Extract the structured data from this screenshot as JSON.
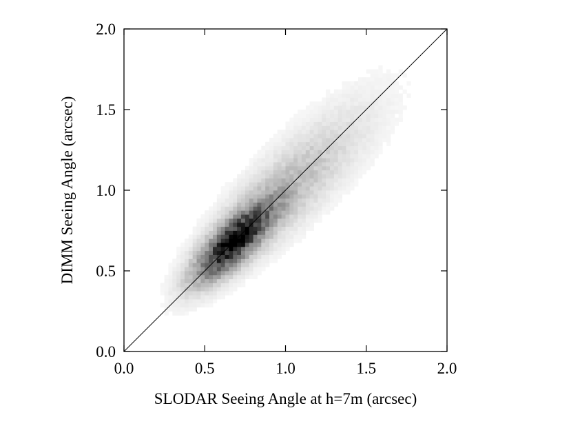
{
  "chart_data": {
    "type": "heatmap",
    "title": "",
    "xlabel": "SLODAR Seeing Angle at h=7m (arcsec)",
    "ylabel": "DIMM Seeing Angle (arcsec)",
    "xlim": [
      0.0,
      2.0
    ],
    "ylim": [
      0.0,
      2.0
    ],
    "xticks": [
      "0.0",
      "0.5",
      "1.0",
      "1.5",
      "2.0"
    ],
    "yticks": [
      "0.0",
      "0.5",
      "1.0",
      "1.5",
      "2.0"
    ],
    "grid": false,
    "reference_line": {
      "label": "y = x",
      "from": [
        0.0,
        0.0
      ],
      "to": [
        2.0,
        2.0
      ]
    },
    "density": {
      "peak_center": [
        0.68,
        0.68
      ],
      "peak_max_cells": [
        [
          0.64,
          0.67
        ],
        [
          0.69,
          0.67
        ],
        [
          0.75,
          0.76
        ]
      ],
      "spread_along_diagonal": 0.2,
      "spread_across_diagonal": 0.07,
      "tail_toward_upper_right": true
    },
    "colormap": {
      "low": "#ffffff",
      "high": "#000000"
    }
  }
}
